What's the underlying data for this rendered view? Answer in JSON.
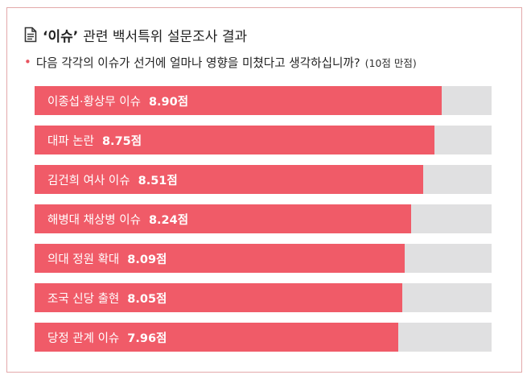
{
  "header": {
    "title_quote": "‘이슈’",
    "title_rest": "관련 백서특위 설문조사 결과",
    "icon": "document-icon"
  },
  "question": {
    "bullet": "•",
    "text": "다음 각각의 이슈가 선거에 얼마나 영향을 미쳤다고 생각하십니까?",
    "scale_note": "(10점 만점)"
  },
  "colors": {
    "bar": "#f05b68",
    "track": "#e0e0e1",
    "accent": "#e8545f"
  },
  "chart_data": {
    "type": "bar",
    "orientation": "horizontal",
    "xlim": [
      0,
      10
    ],
    "value_suffix": "점",
    "categories": [
      "이종섭·황상무 이슈",
      "대파 논란",
      "김건희 여사 이슈",
      "해병대 채상병 이슈",
      "의대 정원 확대",
      "조국 신당 출현",
      "당정 관계 이슈"
    ],
    "values": [
      8.9,
      8.75,
      8.51,
      8.24,
      8.09,
      8.05,
      7.96
    ]
  }
}
